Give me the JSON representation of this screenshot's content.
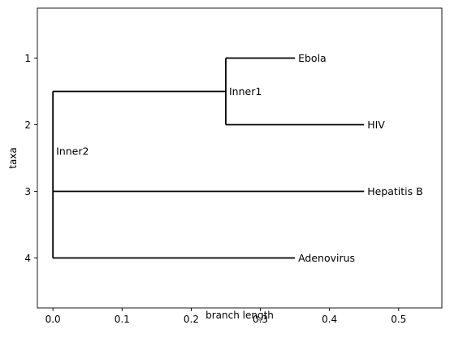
{
  "chart_data": {
    "type": "tree",
    "xlabel": "branch length",
    "ylabel": "taxa",
    "xlim": [
      -0.0225,
      0.5625
    ],
    "ylim": [
      4.75,
      0.25
    ],
    "xticks": [
      {
        "value": 0.0,
        "label": "0.0"
      },
      {
        "value": 0.1,
        "label": "0.1"
      },
      {
        "value": 0.2,
        "label": "0.2"
      },
      {
        "value": 0.3,
        "label": "0.3"
      },
      {
        "value": 0.4,
        "label": "0.4"
      },
      {
        "value": 0.5,
        "label": "0.5"
      }
    ],
    "yticks": [
      {
        "value": 1,
        "label": "1"
      },
      {
        "value": 2,
        "label": "2"
      },
      {
        "value": 3,
        "label": "3"
      },
      {
        "value": 4,
        "label": "4"
      }
    ],
    "grid": false,
    "line_color": "#000000",
    "nodes": [
      {
        "name": "Inner2",
        "label": "Inner2",
        "x": 0.0,
        "y": 2.5,
        "label_position": "above"
      },
      {
        "name": "Inner1",
        "label": "Inner1",
        "x": 0.25,
        "y": 1.5,
        "label_position": "right"
      },
      {
        "name": "Ebola",
        "label": "Ebola",
        "x": 0.35,
        "y": 1,
        "label_position": "right"
      },
      {
        "name": "HIV",
        "label": "HIV",
        "x": 0.45,
        "y": 2,
        "label_position": "right"
      },
      {
        "name": "Hepatitis B",
        "label": "Hepatitis B",
        "x": 0.45,
        "y": 3,
        "label_position": "right"
      },
      {
        "name": "Adenovirus",
        "label": "Adenovirus",
        "x": 0.35,
        "y": 4,
        "label_position": "right"
      }
    ],
    "edges": [
      {
        "parent": "Inner2",
        "child": "Inner1"
      },
      {
        "parent": "Inner2",
        "child": "Hepatitis B"
      },
      {
        "parent": "Inner2",
        "child": "Adenovirus"
      },
      {
        "parent": "Inner1",
        "child": "Ebola"
      },
      {
        "parent": "Inner1",
        "child": "HIV"
      }
    ],
    "vertical_connectors": [
      {
        "node": "Inner2",
        "y_range": [
          1.5,
          4
        ]
      },
      {
        "node": "Inner1",
        "y_range": [
          1,
          2
        ]
      }
    ]
  }
}
